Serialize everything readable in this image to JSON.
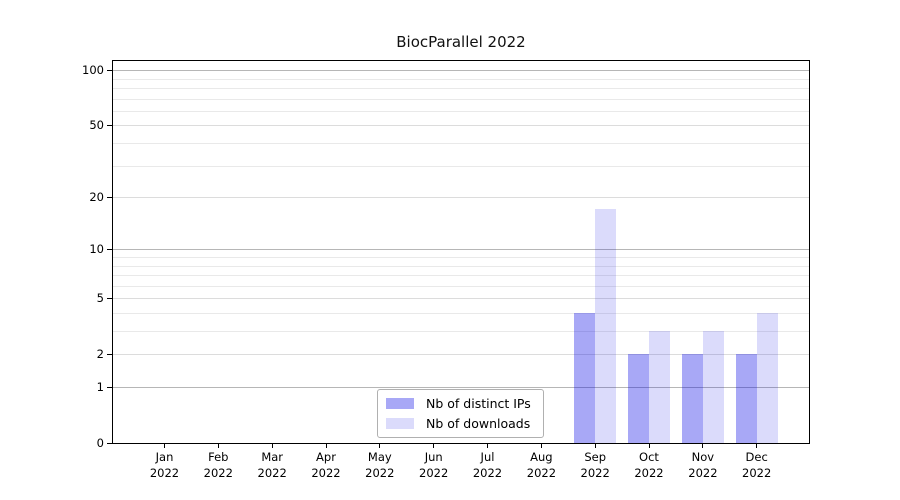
{
  "figure": {
    "title": "BiocParallel 2022",
    "background": "#ffffff"
  },
  "chart_data": {
    "type": "bar",
    "title": "BiocParallel 2022",
    "x_months": [
      "Jan",
      "Feb",
      "Mar",
      "Apr",
      "May",
      "Jun",
      "Jul",
      "Aug",
      "Sep",
      "Oct",
      "Nov",
      "Dec"
    ],
    "x_years": [
      "2022",
      "2022",
      "2022",
      "2022",
      "2022",
      "2022",
      "2022",
      "2022",
      "2022",
      "2022",
      "2022",
      "2022"
    ],
    "series": [
      {
        "name": "Nb of distinct IPs",
        "color": "rgba(0,0,228,0.34)",
        "values": [
          0,
          0,
          0,
          0,
          0,
          0,
          0,
          0,
          4,
          2,
          2,
          2
        ]
      },
      {
        "name": "Nb of downloads",
        "color": "rgba(0,0,228,0.14)",
        "values": [
          0,
          0,
          0,
          0,
          0,
          0,
          0,
          0,
          17,
          3,
          3,
          4
        ]
      }
    ],
    "y_scale": "log10(1+v)",
    "ylim": [
      0,
      112
    ],
    "y_ticks_labeled": [
      0,
      1,
      2,
      5,
      10,
      20,
      50,
      100
    ],
    "y_gridlines_decade": [
      1,
      10,
      100
    ],
    "y_gridlines_sub": [
      2,
      5,
      20,
      50
    ],
    "y_gridlines_minor": [
      3,
      4,
      6,
      7,
      8,
      9,
      30,
      40,
      60,
      70,
      80,
      90
    ],
    "grid": true,
    "legend_position": "lower center"
  },
  "colors": {
    "grid_decade": "#b6b6b6",
    "grid_sub": "#dcdcdc",
    "grid_minor": "#e9e9e9",
    "spine": "#000000",
    "text": "#000000",
    "legend_border": "#b0b0b0"
  }
}
